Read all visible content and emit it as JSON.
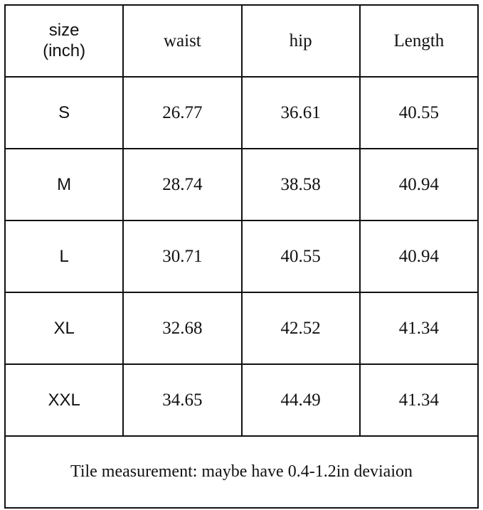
{
  "table": {
    "header": [
      "size\n(inch)",
      "waist",
      "hip",
      "Length"
    ],
    "rows": [
      [
        "S",
        "26.77",
        "36.61",
        "40.55"
      ],
      [
        "M",
        "28.74",
        "38.58",
        "40.94"
      ],
      [
        "L",
        "30.71",
        "40.55",
        "40.94"
      ],
      [
        "XL",
        "32.68",
        "42.52",
        "41.34"
      ],
      [
        "XXL",
        "34.65",
        "44.49",
        "41.34"
      ]
    ],
    "note": "Tile measurement: maybe have 0.4-1.2in deviaion"
  }
}
